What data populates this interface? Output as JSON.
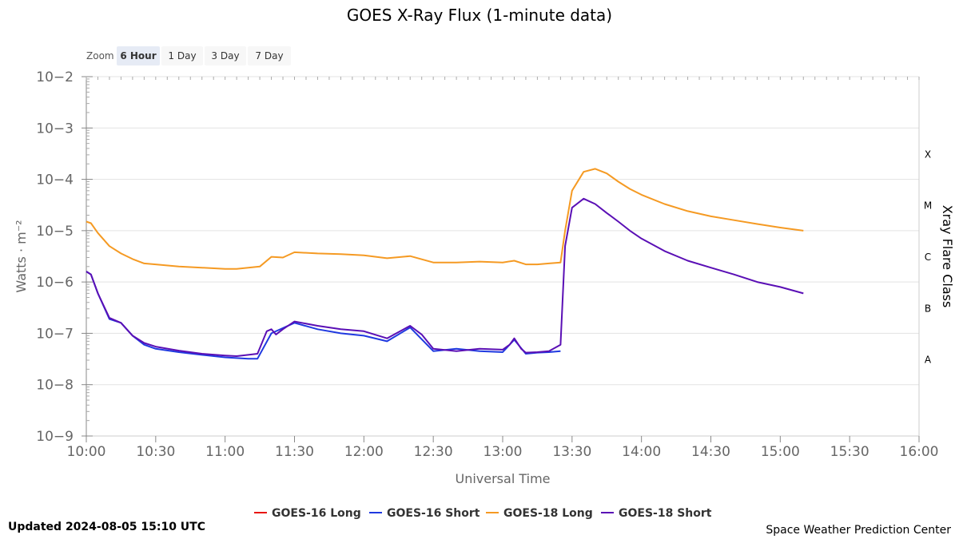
{
  "chart_data": {
    "type": "line",
    "title": "GOES X-Ray Flux (1-minute data)",
    "xlabel": "Universal Time",
    "ylabel": "Watts · m⁻²",
    "y2label": "Xray Flare Class",
    "yscale": "log",
    "ylim_exponents": [
      -9,
      -2
    ],
    "y_tick_labels": [
      "10−9",
      "10−8",
      "10−7",
      "10−6",
      "10−5",
      "10−4",
      "10−3",
      "10−2"
    ],
    "y_tick_exponents": [
      -9,
      -8,
      -7,
      -6,
      -5,
      -4,
      -3,
      -2
    ],
    "flare_classes": [
      {
        "label": "A",
        "exp": -8
      },
      {
        "label": "B",
        "exp": -7
      },
      {
        "label": "C",
        "exp": -6
      },
      {
        "label": "M",
        "exp": -5
      },
      {
        "label": "X",
        "exp": -4
      }
    ],
    "x_tick_labels": [
      "10:00",
      "10:30",
      "11:00",
      "11:30",
      "12:00",
      "12:30",
      "13:00",
      "13:30",
      "14:00",
      "14:30",
      "15:00",
      "15:30",
      "16:00"
    ],
    "x_range": [
      "10:00",
      "16:00"
    ],
    "legend_position": "bottom-center",
    "series": [
      {
        "name": "GOES-16 Long",
        "color": "#e8150b",
        "x": [],
        "y": []
      },
      {
        "name": "GOES-16 Short",
        "color": "#1f39e0",
        "x": [
          "10:00",
          "10:02",
          "10:05",
          "10:10",
          "10:15",
          "10:20",
          "10:25",
          "10:30",
          "10:40",
          "10:50",
          "11:00",
          "11:05",
          "11:10",
          "11:14",
          "11:20",
          "11:30",
          "11:40",
          "11:50",
          "12:00",
          "12:10",
          "12:20",
          "12:30",
          "12:40",
          "12:50",
          "13:00",
          "13:05",
          "13:10",
          "13:15",
          "13:20",
          "13:25"
        ],
        "y": [
          1.6e-06,
          1.4e-06,
          6e-07,
          1.9e-07,
          1.6e-07,
          9e-08,
          6e-08,
          5e-08,
          4.3e-08,
          3.8e-08,
          3.4e-08,
          3.3e-08,
          3.2e-08,
          3.2e-08,
          1e-07,
          1.6e-07,
          1.2e-07,
          1e-07,
          9e-08,
          7e-08,
          1.3e-07,
          4.5e-08,
          5e-08,
          4.5e-08,
          4.3e-08,
          7.5e-08,
          4e-08,
          4.2e-08,
          4.3e-08,
          4.5e-08
        ]
      },
      {
        "name": "GOES-18 Long",
        "color": "#f59a23",
        "x": [
          "10:00",
          "10:02",
          "10:05",
          "10:10",
          "10:15",
          "10:20",
          "10:25",
          "10:30",
          "10:40",
          "10:50",
          "11:00",
          "11:05",
          "11:10",
          "11:15",
          "11:20",
          "11:25",
          "11:30",
          "11:40",
          "11:50",
          "12:00",
          "12:10",
          "12:20",
          "12:30",
          "12:40",
          "12:50",
          "13:00",
          "13:05",
          "13:10",
          "13:15",
          "13:20",
          "13:25",
          "13:27",
          "13:30",
          "13:35",
          "13:40",
          "13:45",
          "13:50",
          "13:55",
          "14:00",
          "14:10",
          "14:20",
          "14:30",
          "14:40",
          "14:50",
          "15:00",
          "15:10"
        ],
        "y": [
          1.5e-05,
          1.4e-05,
          9e-06,
          5e-06,
          3.6e-06,
          2.8e-06,
          2.3e-06,
          2.2e-06,
          2e-06,
          1.9e-06,
          1.8e-06,
          1.8e-06,
          1.9e-06,
          2e-06,
          3.1e-06,
          3e-06,
          3.8e-06,
          3.6e-06,
          3.5e-06,
          3.3e-06,
          2.9e-06,
          3.2e-06,
          2.4e-06,
          2.4e-06,
          2.5e-06,
          2.4e-06,
          2.6e-06,
          2.2e-06,
          2.2e-06,
          2.3e-06,
          2.4e-06,
          1e-05,
          6e-05,
          0.00014,
          0.00016,
          0.00013,
          9e-05,
          6.5e-05,
          5e-05,
          3.3e-05,
          2.4e-05,
          1.9e-05,
          1.6e-05,
          1.35e-05,
          1.15e-05,
          1e-05
        ]
      },
      {
        "name": "GOES-18 Short",
        "color": "#5a0fb5",
        "x": [
          "10:00",
          "10:02",
          "10:05",
          "10:10",
          "10:15",
          "10:20",
          "10:25",
          "10:30",
          "10:40",
          "10:50",
          "11:00",
          "11:05",
          "11:10",
          "11:14",
          "11:18",
          "11:20",
          "11:22",
          "11:25",
          "11:30",
          "11:40",
          "11:50",
          "12:00",
          "12:10",
          "12:20",
          "12:25",
          "12:30",
          "12:40",
          "12:50",
          "13:00",
          "13:03",
          "13:05",
          "13:08",
          "13:10",
          "13:15",
          "13:20",
          "13:25",
          "13:27",
          "13:30",
          "13:35",
          "13:40",
          "13:45",
          "13:50",
          "13:55",
          "14:00",
          "14:10",
          "14:20",
          "14:30",
          "14:40",
          "14:50",
          "15:00",
          "15:10"
        ],
        "y": [
          1.6e-06,
          1.4e-06,
          6e-07,
          2e-07,
          1.6e-07,
          9e-08,
          6.5e-08,
          5.5e-08,
          4.6e-08,
          4e-08,
          3.7e-08,
          3.6e-08,
          3.8e-08,
          4e-08,
          1.1e-07,
          1.2e-07,
          9.5e-08,
          1.2e-07,
          1.7e-07,
          1.4e-07,
          1.2e-07,
          1.1e-07,
          8e-08,
          1.4e-07,
          9.5e-08,
          5e-08,
          4.5e-08,
          5e-08,
          4.8e-08,
          6e-08,
          8e-08,
          5e-08,
          4.2e-08,
          4.3e-08,
          4.5e-08,
          6e-08,
          5e-06,
          2.8e-05,
          4.2e-05,
          3.3e-05,
          2.2e-05,
          1.5e-05,
          1e-05,
          7e-06,
          4e-06,
          2.6e-06,
          1.9e-06,
          1.4e-06,
          1e-06,
          8e-07,
          6e-07
        ]
      }
    ]
  },
  "zoom": {
    "label": "Zoom",
    "buttons": [
      "6 Hour",
      "1 Day",
      "3 Day",
      "7 Day"
    ],
    "selected": "6 Hour"
  },
  "footer": {
    "updated": "Updated 2024-08-05 15:10 UTC",
    "credits": "Space Weather Prediction Center"
  }
}
